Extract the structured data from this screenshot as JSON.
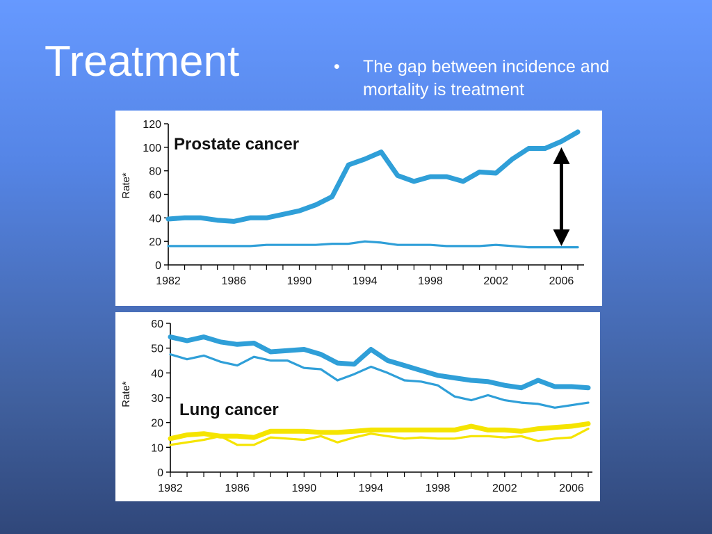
{
  "slide": {
    "title": "Treatment",
    "bullet_symbol": "•",
    "bullet_text": "The gap between incidence and mortality is treatment"
  },
  "colors": {
    "blue_series": "#2f9fd8",
    "yellow_series": "#f5e400",
    "arrow": "#000000"
  },
  "chart_data": [
    {
      "type": "line",
      "title": "Prostate cancer",
      "ylabel": "Rate*",
      "xlabel": "",
      "xlim": [
        1982,
        2007
      ],
      "ylim": [
        0,
        120
      ],
      "x_ticks": [
        1982,
        1986,
        1990,
        1994,
        1998,
        2002,
        2006
      ],
      "y_ticks": [
        0,
        20,
        40,
        60,
        80,
        100,
        120
      ],
      "annotation": "double-headed arrow between incidence and mortality at 2006",
      "series": [
        {
          "color": "#2f9fd8",
          "thick": true,
          "x": [
            1982,
            1983,
            1984,
            1985,
            1986,
            1987,
            1988,
            1989,
            1990,
            1991,
            1992,
            1993,
            1994,
            1995,
            1996,
            1997,
            1998,
            1999,
            2000,
            2001,
            2002,
            2003,
            2004,
            2005,
            2006,
            2007
          ],
          "values": [
            39,
            40,
            40,
            38,
            37,
            40,
            40,
            43,
            46,
            51,
            58,
            85,
            90,
            96,
            76,
            71,
            75,
            75,
            71,
            79,
            78,
            90,
            99,
            99,
            105,
            113
          ]
        },
        {
          "color": "#2f9fd8",
          "thick": false,
          "x": [
            1982,
            1983,
            1984,
            1985,
            1986,
            1987,
            1988,
            1989,
            1990,
            1991,
            1992,
            1993,
            1994,
            1995,
            1996,
            1997,
            1998,
            1999,
            2000,
            2001,
            2002,
            2003,
            2004,
            2005,
            2006,
            2007
          ],
          "values": [
            16,
            16,
            16,
            16,
            16,
            16,
            17,
            17,
            17,
            17,
            18,
            18,
            20,
            19,
            17,
            17,
            17,
            16,
            16,
            16,
            17,
            16,
            15,
            15,
            15,
            15
          ]
        }
      ],
      "arrow": {
        "x": 2006,
        "y_top": 100,
        "y_bottom": 16
      }
    },
    {
      "type": "line",
      "title": "Lung cancer",
      "ylabel": "Rate*",
      "xlabel": "",
      "xlim": [
        1982,
        2007
      ],
      "ylim": [
        0,
        60
      ],
      "x_ticks": [
        1982,
        1986,
        1990,
        1994,
        1998,
        2002,
        2006
      ],
      "y_ticks": [
        0,
        10,
        20,
        30,
        40,
        50,
        60
      ],
      "series": [
        {
          "color": "#2f9fd8",
          "thick": true,
          "x": [
            1982,
            1983,
            1984,
            1985,
            1986,
            1987,
            1988,
            1989,
            1990,
            1991,
            1992,
            1993,
            1994,
            1995,
            1996,
            1997,
            1998,
            1999,
            2000,
            2001,
            2002,
            2003,
            2004,
            2005,
            2006,
            2007
          ],
          "values": [
            54.5,
            53,
            54.5,
            52.5,
            51.5,
            52,
            48.5,
            49,
            49.5,
            47.5,
            44,
            43.5,
            49.5,
            45,
            43,
            41,
            39,
            38,
            37,
            36.5,
            35,
            34,
            37,
            34.5,
            34.5,
            34
          ]
        },
        {
          "color": "#2f9fd8",
          "thick": false,
          "x": [
            1982,
            1983,
            1984,
            1985,
            1986,
            1987,
            1988,
            1989,
            1990,
            1991,
            1992,
            1993,
            1994,
            1995,
            1996,
            1997,
            1998,
            1999,
            2000,
            2001,
            2002,
            2003,
            2004,
            2005,
            2006,
            2007
          ],
          "values": [
            47.5,
            45.5,
            47,
            44.5,
            43,
            46.5,
            45,
            45,
            42,
            41.5,
            37,
            39.5,
            42.5,
            40,
            37,
            36.5,
            35,
            30.5,
            29,
            31,
            29,
            28,
            27.5,
            26,
            27,
            28
          ]
        },
        {
          "color": "#f5e400",
          "thick": true,
          "x": [
            1982,
            1983,
            1984,
            1985,
            1986,
            1987,
            1988,
            1989,
            1990,
            1991,
            1992,
            1993,
            1994,
            1995,
            1996,
            1997,
            1998,
            1999,
            2000,
            2001,
            2002,
            2003,
            2004,
            2005,
            2006,
            2007
          ],
          "values": [
            13.5,
            15,
            15.5,
            14.5,
            14.5,
            14,
            16.5,
            16.5,
            16.5,
            16,
            16,
            16.5,
            17,
            17,
            17,
            17,
            17,
            17,
            18.5,
            17,
            17,
            16.5,
            17.5,
            18,
            18.5,
            19.5
          ]
        },
        {
          "color": "#f5e400",
          "thick": false,
          "x": [
            1982,
            1983,
            1984,
            1985,
            1986,
            1987,
            1988,
            1989,
            1990,
            1991,
            1992,
            1993,
            1994,
            1995,
            1996,
            1997,
            1998,
            1999,
            2000,
            2001,
            2002,
            2003,
            2004,
            2005,
            2006,
            2007
          ],
          "values": [
            11,
            12,
            13,
            14.5,
            11,
            11,
            14,
            13.5,
            13,
            14.5,
            12,
            14,
            15.5,
            14.5,
            13.5,
            14,
            13.5,
            13.5,
            14.5,
            14.5,
            14,
            14.5,
            12.5,
            13.5,
            14,
            17.5
          ]
        }
      ]
    }
  ]
}
